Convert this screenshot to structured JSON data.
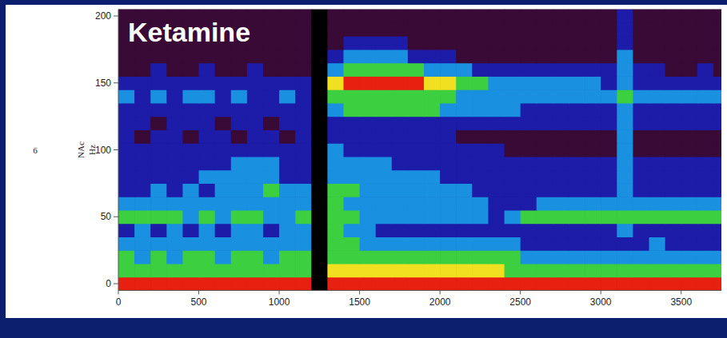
{
  "chart_data": {
    "type": "heatmap",
    "title": "Ketamine",
    "panel_label": "6",
    "ylabel": "NAc",
    "yunit": "Hz",
    "xlim": [
      0,
      3750
    ],
    "ylim": [
      -5,
      205
    ],
    "xticks": [
      0,
      500,
      1000,
      1500,
      2000,
      2500,
      3000,
      3500
    ],
    "yticks": [
      0,
      50,
      100,
      150,
      200
    ],
    "zlim": [
      0,
      5
    ],
    "grid": false,
    "x_bins": [
      0,
      100,
      200,
      300,
      400,
      500,
      600,
      700,
      800,
      900,
      1000,
      1100,
      1200,
      1300,
      1400,
      1500,
      1600,
      1700,
      1800,
      1900,
      2000,
      2100,
      2200,
      2300,
      2400,
      2500,
      2600,
      2700,
      2800,
      2900,
      3000,
      3100,
      3200,
      3300,
      3400,
      3500,
      3600,
      3700,
      3750
    ],
    "y_bins": [
      -5,
      5,
      15,
      25,
      35,
      45,
      55,
      65,
      75,
      85,
      95,
      105,
      115,
      125,
      135,
      145,
      155,
      165,
      175,
      185,
      195,
      205
    ],
    "cells": [
      [
        5,
        5,
        5,
        5,
        5,
        5,
        5,
        5,
        5,
        5,
        5,
        5,
        null,
        5,
        5,
        5,
        5,
        5,
        5,
        5,
        5,
        5,
        5,
        5,
        5,
        5,
        5,
        5,
        5,
        5,
        5,
        5,
        5,
        5,
        5,
        5,
        5,
        5
      ],
      [
        3,
        3,
        3,
        3,
        3,
        3,
        3,
        3,
        3,
        3,
        3,
        3,
        null,
        4,
        4,
        4,
        4,
        4,
        4,
        4,
        4,
        4,
        4,
        4,
        3,
        3,
        3,
        3,
        3,
        3,
        3,
        3,
        3,
        3,
        3,
        3,
        3,
        3
      ],
      [
        3,
        2,
        3,
        2,
        3,
        3,
        2,
        3,
        3,
        2,
        3,
        3,
        null,
        3,
        3,
        3,
        3,
        3,
        3,
        3,
        3,
        3,
        3,
        3,
        3,
        2,
        2,
        2,
        2,
        2,
        2,
        2,
        2,
        2,
        2,
        2,
        2,
        2
      ],
      [
        2,
        2,
        2,
        2,
        2,
        2,
        2,
        2,
        2,
        2,
        2,
        2,
        null,
        3,
        3,
        2,
        2,
        2,
        2,
        2,
        2,
        2,
        2,
        2,
        2,
        1,
        1,
        1,
        1,
        1,
        1,
        1,
        1,
        2,
        1,
        1,
        1,
        1
      ],
      [
        1,
        2,
        1,
        2,
        1,
        2,
        1,
        2,
        2,
        1,
        2,
        2,
        null,
        3,
        2,
        2,
        1,
        1,
        1,
        1,
        1,
        1,
        1,
        1,
        1,
        1,
        1,
        1,
        1,
        1,
        1,
        2,
        1,
        1,
        1,
        1,
        1,
        1
      ],
      [
        3,
        3,
        3,
        3,
        2,
        3,
        2,
        3,
        3,
        2,
        2,
        3,
        null,
        3,
        3,
        2,
        2,
        2,
        2,
        2,
        2,
        2,
        2,
        1,
        2,
        3,
        3,
        3,
        3,
        3,
        3,
        3,
        3,
        3,
        3,
        3,
        3,
        3
      ],
      [
        2,
        2,
        2,
        2,
        2,
        2,
        2,
        2,
        2,
        2,
        2,
        2,
        null,
        3,
        2,
        2,
        2,
        2,
        2,
        2,
        2,
        2,
        2,
        1,
        1,
        1,
        2,
        2,
        2,
        2,
        2,
        2,
        2,
        2,
        2,
        2,
        2,
        2
      ],
      [
        1,
        1,
        2,
        1,
        2,
        1,
        2,
        2,
        2,
        3,
        2,
        2,
        null,
        3,
        3,
        2,
        2,
        2,
        2,
        2,
        2,
        2,
        1,
        1,
        1,
        1,
        1,
        1,
        1,
        1,
        1,
        2,
        1,
        1,
        1,
        1,
        1,
        1
      ],
      [
        1,
        1,
        1,
        1,
        1,
        2,
        2,
        2,
        2,
        2,
        1,
        1,
        null,
        2,
        2,
        2,
        2,
        2,
        2,
        2,
        1,
        1,
        1,
        1,
        1,
        1,
        1,
        1,
        1,
        1,
        1,
        2,
        1,
        1,
        1,
        1,
        1,
        1
      ],
      [
        1,
        1,
        1,
        1,
        1,
        1,
        1,
        2,
        2,
        2,
        1,
        1,
        null,
        2,
        2,
        2,
        2,
        1,
        1,
        1,
        1,
        1,
        1,
        1,
        1,
        1,
        1,
        1,
        1,
        1,
        1,
        2,
        1,
        1,
        1,
        1,
        1,
        1
      ],
      [
        1,
        1,
        1,
        1,
        1,
        1,
        1,
        1,
        1,
        1,
        1,
        1,
        null,
        2,
        1,
        1,
        1,
        1,
        1,
        1,
        1,
        1,
        1,
        1,
        0,
        0,
        0,
        0,
        0,
        0,
        0,
        2,
        0,
        0,
        0,
        0,
        0,
        0
      ],
      [
        1,
        0,
        1,
        1,
        0,
        1,
        1,
        0,
        1,
        1,
        0,
        1,
        null,
        1,
        1,
        1,
        1,
        1,
        1,
        1,
        1,
        0,
        0,
        0,
        0,
        0,
        0,
        0,
        0,
        0,
        0,
        2,
        0,
        0,
        0,
        0,
        0,
        0
      ],
      [
        1,
        1,
        0,
        1,
        1,
        1,
        0,
        1,
        1,
        0,
        1,
        1,
        null,
        1,
        1,
        1,
        1,
        1,
        1,
        1,
        1,
        1,
        1,
        1,
        1,
        1,
        1,
        1,
        1,
        1,
        1,
        2,
        1,
        1,
        1,
        1,
        1,
        1
      ],
      [
        1,
        1,
        1,
        1,
        1,
        1,
        1,
        1,
        1,
        1,
        1,
        1,
        null,
        2,
        3,
        3,
        3,
        3,
        3,
        3,
        2,
        2,
        2,
        2,
        2,
        1,
        1,
        1,
        1,
        1,
        1,
        2,
        1,
        1,
        1,
        1,
        1,
        1
      ],
      [
        2,
        1,
        2,
        1,
        2,
        2,
        1,
        2,
        1,
        1,
        2,
        1,
        null,
        3,
        3,
        3,
        3,
        3,
        3,
        3,
        3,
        2,
        2,
        2,
        2,
        2,
        2,
        2,
        2,
        2,
        2,
        3,
        2,
        2,
        2,
        2,
        2,
        2
      ],
      [
        1,
        1,
        1,
        1,
        1,
        1,
        1,
        1,
        1,
        1,
        1,
        1,
        null,
        4,
        5,
        5,
        5,
        5,
        5,
        4,
        4,
        3,
        3,
        2,
        2,
        2,
        2,
        2,
        2,
        2,
        1,
        2,
        1,
        1,
        1,
        1,
        1,
        1
      ],
      [
        0,
        0,
        1,
        0,
        0,
        1,
        0,
        0,
        1,
        0,
        0,
        0,
        null,
        2,
        3,
        3,
        3,
        3,
        3,
        2,
        2,
        2,
        1,
        1,
        1,
        1,
        1,
        1,
        1,
        1,
        1,
        2,
        1,
        1,
        0,
        0,
        1,
        0
      ],
      [
        0,
        0,
        0,
        0,
        0,
        0,
        0,
        0,
        0,
        0,
        0,
        0,
        null,
        1,
        2,
        2,
        2,
        2,
        1,
        1,
        1,
        0,
        0,
        0,
        0,
        0,
        0,
        0,
        0,
        0,
        0,
        2,
        0,
        0,
        0,
        0,
        0,
        0
      ],
      [
        0,
        0,
        0,
        0,
        0,
        0,
        0,
        0,
        0,
        0,
        0,
        0,
        null,
        0,
        1,
        1,
        1,
        1,
        0,
        0,
        0,
        0,
        0,
        0,
        0,
        0,
        0,
        0,
        0,
        0,
        0,
        1,
        0,
        0,
        0,
        0,
        0,
        0
      ],
      [
        0,
        0,
        0,
        0,
        0,
        0,
        0,
        0,
        0,
        0,
        0,
        0,
        null,
        0,
        0,
        0,
        0,
        0,
        0,
        0,
        0,
        0,
        0,
        0,
        0,
        0,
        0,
        0,
        0,
        0,
        0,
        1,
        0,
        0,
        0,
        0,
        0,
        0
      ],
      [
        0,
        0,
        0,
        0,
        0,
        0,
        0,
        0,
        0,
        0,
        0,
        0,
        null,
        0,
        0,
        0,
        0,
        0,
        0,
        0,
        0,
        0,
        0,
        0,
        0,
        0,
        0,
        0,
        0,
        0,
        0,
        1,
        0,
        0,
        0,
        0,
        0,
        0
      ]
    ]
  }
}
